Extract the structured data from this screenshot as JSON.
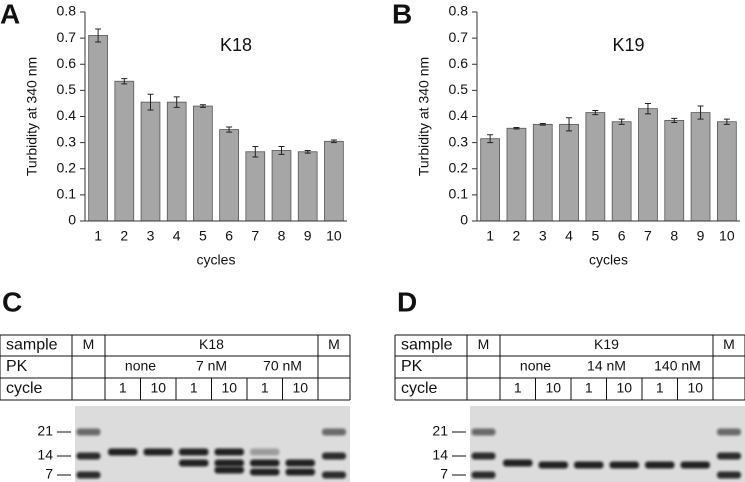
{
  "chart_data": [
    {
      "type": "bar",
      "label": "A",
      "title": "K18",
      "ylabel": "Turbidity at 340 nm",
      "xlabel": "cycles",
      "categories": [
        "1",
        "2",
        "3",
        "4",
        "5",
        "6",
        "7",
        "8",
        "9",
        "10"
      ],
      "values": [
        0.71,
        0.535,
        0.455,
        0.455,
        0.44,
        0.35,
        0.265,
        0.27,
        0.265,
        0.305
      ],
      "errors": [
        0.025,
        0.01,
        0.03,
        0.02,
        0.005,
        0.01,
        0.02,
        0.015,
        0.005,
        0.005
      ],
      "color": "#a6a6a6",
      "ylim": [
        0,
        0.8
      ],
      "yticks": [
        0,
        0.1,
        0.2,
        0.3,
        0.4,
        0.5,
        0.6,
        0.7,
        0.8
      ]
    },
    {
      "type": "bar",
      "label": "B",
      "title": "K19",
      "ylabel": "Turbidity at 340 nm",
      "xlabel": "cycles",
      "categories": [
        "1",
        "2",
        "3",
        "4",
        "5",
        "6",
        "7",
        "8",
        "9",
        "10"
      ],
      "values": [
        0.315,
        0.355,
        0.37,
        0.37,
        0.415,
        0.38,
        0.43,
        0.385,
        0.415,
        0.38
      ],
      "errors": [
        0.015,
        0.003,
        0.003,
        0.025,
        0.008,
        0.01,
        0.02,
        0.008,
        0.025,
        0.01
      ],
      "color": "#a6a6a6",
      "ylim": [
        0,
        0.8
      ],
      "yticks": [
        0,
        0.1,
        0.2,
        0.3,
        0.4,
        0.5,
        0.6,
        0.7,
        0.8
      ]
    }
  ],
  "gels": [
    {
      "label": "C",
      "sample_label": "sample",
      "marker": "M",
      "protein": "K18",
      "pk_label": "PK",
      "pk": [
        "none",
        "7 nM",
        "70 nM"
      ],
      "cycle_label": "cycle",
      "cycles": [
        "1",
        "10",
        "1",
        "10",
        "1",
        "10"
      ],
      "mw": [
        "21",
        "14",
        "7"
      ]
    },
    {
      "label": "D",
      "sample_label": "sample",
      "marker": "M",
      "protein": "K19",
      "pk_label": "PK",
      "pk": [
        "none",
        "14 nM",
        "140 nM"
      ],
      "cycle_label": "cycle",
      "cycles": [
        "1",
        "10",
        "1",
        "10",
        "1",
        "10"
      ],
      "mw": [
        "21",
        "14",
        "7"
      ]
    }
  ]
}
